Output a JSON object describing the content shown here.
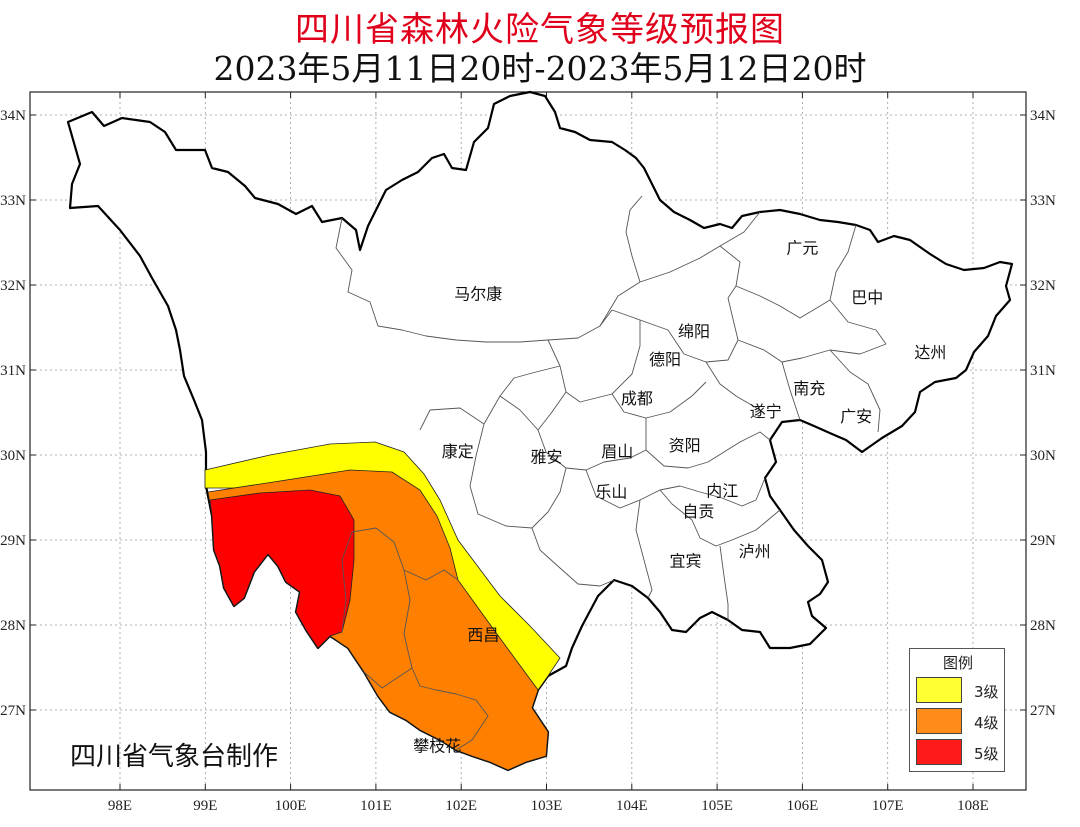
{
  "title": "四川省森林火险气象等级预报图",
  "subtitle": "2023年5月11日20时-2023年5月12日20时",
  "credit": "四川省气象台制作",
  "axes": {
    "lon_ticks": [
      "98E",
      "99E",
      "100E",
      "101E",
      "102E",
      "103E",
      "104E",
      "105E",
      "106E",
      "107E",
      "108E"
    ],
    "lat_ticks": [
      "34N",
      "33N",
      "32N",
      "31N",
      "30N",
      "29N",
      "28N",
      "27N"
    ]
  },
  "cities": [
    {
      "name": "广元",
      "lon": 106.0,
      "lat": 32.44
    },
    {
      "name": "巴中",
      "lon": 106.76,
      "lat": 31.86
    },
    {
      "name": "马尔康",
      "lon": 102.2,
      "lat": 31.9
    },
    {
      "name": "绵阳",
      "lon": 104.73,
      "lat": 31.46
    },
    {
      "name": "德阳",
      "lon": 104.39,
      "lat": 31.13
    },
    {
      "name": "达州",
      "lon": 107.5,
      "lat": 31.21
    },
    {
      "name": "南充",
      "lon": 106.08,
      "lat": 30.79
    },
    {
      "name": "成都",
      "lon": 104.06,
      "lat": 30.67
    },
    {
      "name": "遂宁",
      "lon": 105.57,
      "lat": 30.52
    },
    {
      "name": "广安",
      "lon": 106.63,
      "lat": 30.46
    },
    {
      "name": "康定",
      "lon": 101.96,
      "lat": 30.05
    },
    {
      "name": "雅安",
      "lon": 103.0,
      "lat": 29.98
    },
    {
      "name": "眉山",
      "lon": 103.83,
      "lat": 30.05
    },
    {
      "name": "资阳",
      "lon": 104.62,
      "lat": 30.12
    },
    {
      "name": "乐山",
      "lon": 103.76,
      "lat": 29.57
    },
    {
      "name": "自贡",
      "lon": 104.78,
      "lat": 29.34
    },
    {
      "name": "内江",
      "lon": 105.06,
      "lat": 29.58
    },
    {
      "name": "泸州",
      "lon": 105.44,
      "lat": 28.87
    },
    {
      "name": "宜宾",
      "lon": 104.63,
      "lat": 28.76
    },
    {
      "name": "西昌",
      "lon": 102.26,
      "lat": 27.89
    },
    {
      "name": "攀枝花",
      "lon": 101.72,
      "lat": 26.58
    }
  ],
  "legend": {
    "title": "图例",
    "items": [
      {
        "label": "3级",
        "color": "#ffff33"
      },
      {
        "label": "4级",
        "color": "#ff8c1a"
      },
      {
        "label": "5级",
        "color": "#ff1a1a"
      }
    ]
  },
  "colors": {
    "level3": "#ffff00",
    "level4": "#ff8000",
    "level5": "#ff0000",
    "title": "#e0001b"
  }
}
